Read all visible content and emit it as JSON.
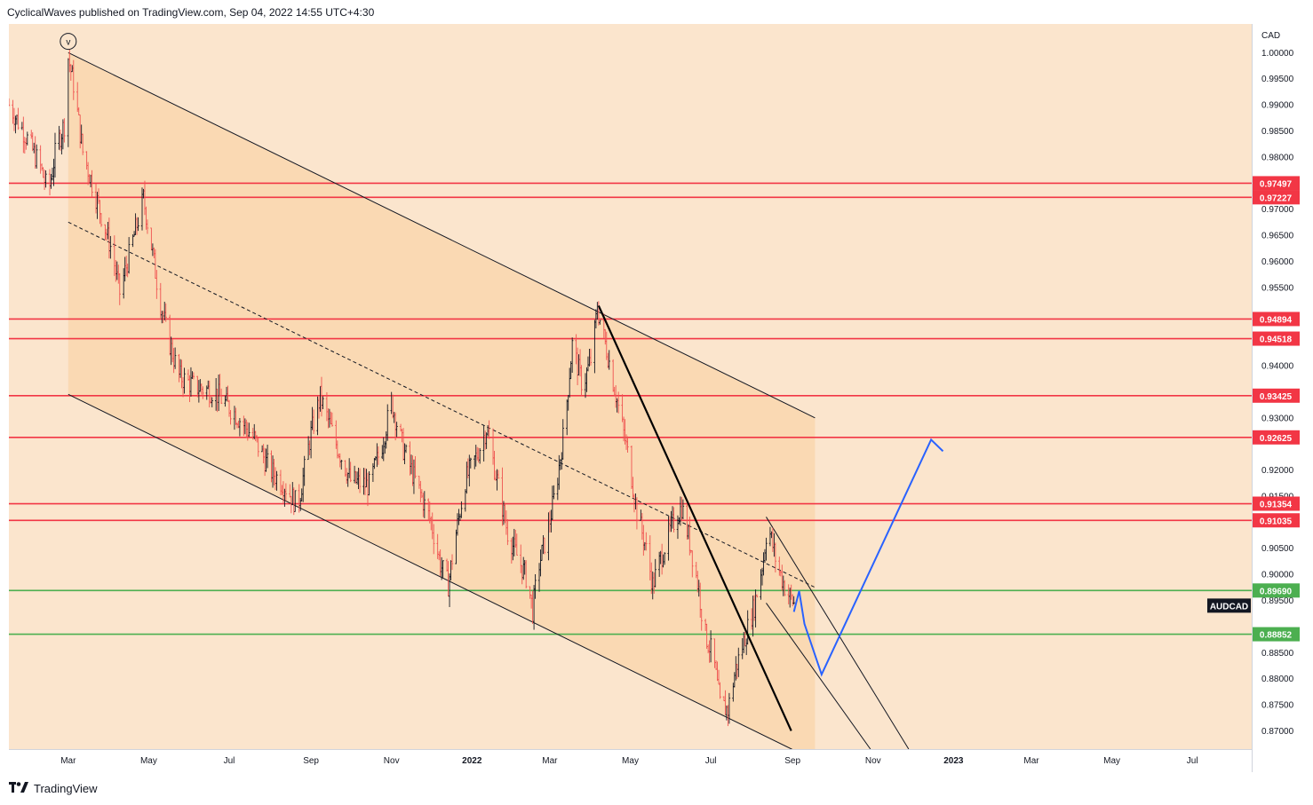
{
  "header": {
    "publisher_line": "CyclicalWaves published on TradingView.com, Sep 04, 2022 14:55 UTC+4:30"
  },
  "footer": {
    "brand": "TradingView",
    "logo": "tv-logo-icon"
  },
  "colors": {
    "background": "#fbe5cd",
    "channel_fill": "#f9d4a9",
    "candle_up": "#131722",
    "candle_down": "#ef5350",
    "resistance": "#f23645",
    "support": "#4caf50",
    "projection": "#2962ff",
    "label_bg_red": "#f23645",
    "label_bg_green": "#4caf50",
    "symbol_label_bg": "#131722"
  },
  "chart_data": {
    "type": "candlestick",
    "symbol": "AUDCAD",
    "currency": "CAD",
    "x_axis": {
      "tick_labels": [
        "Mar",
        "May",
        "Jul",
        "Sep",
        "Nov",
        "2022",
        "Mar",
        "May",
        "Jul",
        "Sep",
        "Nov",
        "2023",
        "Mar",
        "May",
        "Jul"
      ],
      "range": [
        "2021-01-15",
        "2023-08-15"
      ]
    },
    "y_axis": {
      "range": [
        0.8665,
        1.0055
      ],
      "tick_labels": [
        "1.00000",
        "0.99500",
        "0.99000",
        "0.98500",
        "0.98000",
        "0.97000",
        "0.96500",
        "0.96000",
        "0.95500",
        "0.94000",
        "0.93000",
        "0.92000",
        "0.91500",
        "0.90500",
        "0.90000",
        "0.89500",
        "0.88500",
        "0.88000",
        "0.87500",
        "0.87000"
      ],
      "position": "right"
    },
    "horizontal_levels": [
      {
        "value": 0.97497,
        "label": "0.97497",
        "kind": "resistance"
      },
      {
        "value": 0.97227,
        "label": "0.97227",
        "kind": "resistance"
      },
      {
        "value": 0.94894,
        "label": "0.94894",
        "kind": "resistance"
      },
      {
        "value": 0.94518,
        "label": "0.94518",
        "kind": "resistance"
      },
      {
        "value": 0.93425,
        "label": "0.93425",
        "kind": "resistance"
      },
      {
        "value": 0.92625,
        "label": "0.92625",
        "kind": "resistance"
      },
      {
        "value": 0.91354,
        "label": "0.91354",
        "kind": "resistance"
      },
      {
        "value": 0.91035,
        "label": "0.91035",
        "kind": "resistance"
      },
      {
        "value": 0.8969,
        "label": "0.89690",
        "kind": "support"
      },
      {
        "value": 0.88852,
        "label": "0.88852",
        "kind": "support"
      }
    ],
    "last_price_label": "AUDCAD",
    "wave_marker": "v",
    "price_path": [
      [
        "2021-01-15",
        0.99
      ],
      [
        "2021-01-28",
        0.984
      ],
      [
        "2021-02-08",
        0.978
      ],
      [
        "2021-02-14",
        0.973
      ],
      [
        "2021-02-20",
        0.982
      ],
      [
        "2021-02-27",
        0.987
      ],
      [
        "2021-03-01",
        0.999
      ],
      [
        "2021-03-05",
        0.994
      ],
      [
        "2021-03-12",
        0.981
      ],
      [
        "2021-03-19",
        0.975
      ],
      [
        "2021-03-27",
        0.968
      ],
      [
        "2021-04-03",
        0.962
      ],
      [
        "2021-04-09",
        0.954
      ],
      [
        "2021-04-15",
        0.96
      ],
      [
        "2021-04-21",
        0.966
      ],
      [
        "2021-04-27",
        0.972
      ],
      [
        "2021-05-03",
        0.963
      ],
      [
        "2021-05-09",
        0.953
      ],
      [
        "2021-05-16",
        0.945
      ],
      [
        "2021-05-24",
        0.938
      ],
      [
        "2021-06-05",
        0.936
      ],
      [
        "2021-06-20",
        0.935
      ],
      [
        "2021-07-05",
        0.931
      ],
      [
        "2021-07-20",
        0.926
      ],
      [
        "2021-08-01",
        0.92
      ],
      [
        "2021-08-12",
        0.917
      ],
      [
        "2021-08-22",
        0.913
      ],
      [
        "2021-09-01",
        0.927
      ],
      [
        "2021-09-08",
        0.934
      ],
      [
        "2021-09-20",
        0.925
      ],
      [
        "2021-10-01",
        0.918
      ],
      [
        "2021-10-15",
        0.917
      ],
      [
        "2021-10-25",
        0.925
      ],
      [
        "2021-11-01",
        0.933
      ],
      [
        "2021-11-10",
        0.924
      ],
      [
        "2021-11-22",
        0.916
      ],
      [
        "2021-12-01",
        0.91
      ],
      [
        "2021-12-08",
        0.902
      ],
      [
        "2021-12-14",
        0.898
      ],
      [
        "2021-12-20",
        0.908
      ],
      [
        "2021-12-27",
        0.918
      ],
      [
        "2022-01-05",
        0.923
      ],
      [
        "2022-01-12",
        0.928
      ],
      [
        "2022-01-20",
        0.918
      ],
      [
        "2022-01-28",
        0.908
      ],
      [
        "2022-02-05",
        0.903
      ],
      [
        "2022-02-12",
        0.899
      ],
      [
        "2022-02-16",
        0.893
      ],
      [
        "2022-02-20",
        0.901
      ],
      [
        "2022-02-28",
        0.909
      ],
      [
        "2022-03-06",
        0.917
      ],
      [
        "2022-03-12",
        0.928
      ],
      [
        "2022-03-18",
        0.944
      ],
      [
        "2022-03-26",
        0.936
      ],
      [
        "2022-04-02",
        0.942
      ],
      [
        "2022-04-06",
        0.951
      ],
      [
        "2022-04-14",
        0.942
      ],
      [
        "2022-04-22",
        0.932
      ],
      [
        "2022-04-30",
        0.922
      ],
      [
        "2022-05-06",
        0.912
      ],
      [
        "2022-05-12",
        0.906
      ],
      [
        "2022-05-18",
        0.898
      ],
      [
        "2022-05-24",
        0.903
      ],
      [
        "2022-06-01",
        0.909
      ],
      [
        "2022-06-09",
        0.913
      ],
      [
        "2022-06-16",
        0.905
      ],
      [
        "2022-06-22",
        0.897
      ],
      [
        "2022-06-26",
        0.889
      ],
      [
        "2022-07-03",
        0.884
      ],
      [
        "2022-07-08",
        0.875
      ],
      [
        "2022-07-14",
        0.874
      ],
      [
        "2022-07-20",
        0.882
      ],
      [
        "2022-07-27",
        0.888
      ],
      [
        "2022-08-03",
        0.894
      ],
      [
        "2022-08-10",
        0.903
      ],
      [
        "2022-08-13",
        0.91
      ],
      [
        "2022-08-20",
        0.902
      ],
      [
        "2022-08-27",
        0.897
      ],
      [
        "2022-09-03",
        0.894
      ]
    ],
    "channels": [
      {
        "name": "main_descending_channel",
        "upper": [
          [
            "2021-03-01",
            1.0
          ],
          [
            "2022-09-18",
            0.93
          ]
        ],
        "lower": [
          [
            "2021-03-01",
            0.9345
          ],
          [
            "2022-09-18",
            0.8643
          ]
        ],
        "median_dashed": [
          [
            "2021-03-01",
            0.9675
          ],
          [
            "2022-09-18",
            0.8975
          ]
        ]
      },
      {
        "name": "small_descending_channel",
        "upper": [
          [
            "2022-08-12",
            0.911
          ],
          [
            "2022-11-28",
            0.8665
          ]
        ],
        "lower": [
          [
            "2022-08-12",
            0.8945
          ],
          [
            "2022-10-30",
            0.8665
          ]
        ]
      }
    ],
    "trendline": [
      [
        "2022-04-07",
        0.9515
      ],
      [
        "2022-08-31",
        0.87
      ]
    ],
    "projection_path": [
      [
        "2022-09-02",
        0.8928
      ],
      [
        "2022-09-06",
        0.8968
      ],
      [
        "2022-09-10",
        0.8905
      ],
      [
        "2022-09-23",
        0.8808
      ],
      [
        "2022-12-15",
        0.9258
      ],
      [
        "2022-12-24",
        0.9236
      ]
    ],
    "grid": false,
    "legend": "none"
  }
}
